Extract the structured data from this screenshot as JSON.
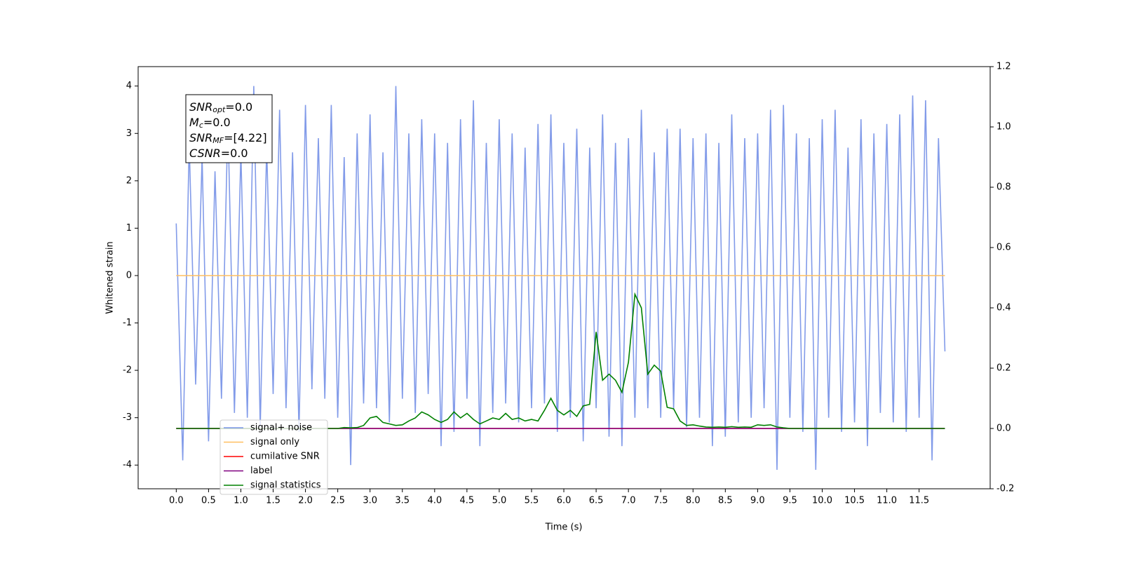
{
  "chart_data": {
    "type": "line",
    "xlabel": "Time (s)",
    "ylabel": "Whitened strain",
    "xlim": [
      -0.59,
      12.6
    ],
    "ylim": [
      -4.5,
      4.41
    ],
    "y2lim": [
      -0.2,
      1.2
    ],
    "xticks": [
      {
        "value": 0,
        "label": "0.0"
      },
      0.5,
      {
        "value": 1,
        "label": "1.0"
      },
      1.5,
      {
        "value": 2,
        "label": "2.0"
      },
      2.5,
      {
        "value": 3,
        "label": "3.0"
      },
      3.5,
      {
        "value": 4,
        "label": "4.0"
      },
      4.5,
      {
        "value": 5,
        "label": "5.0"
      },
      5.5,
      {
        "value": 6,
        "label": "6.0"
      },
      6.5,
      {
        "value": 7,
        "label": "7.0"
      },
      7.5,
      {
        "value": 8,
        "label": "8.0"
      },
      8.5,
      {
        "value": 9,
        "label": "9.0"
      },
      9.5,
      {
        "value": 10,
        "label": "10.0"
      },
      10.5,
      {
        "value": 11,
        "label": "11.0"
      },
      11.5
    ],
    "yticks": [
      -4,
      -3,
      -2,
      -1,
      0,
      1,
      2,
      3,
      4
    ],
    "y2ticks": [
      -0.2,
      {
        "value": 0,
        "label": "0.0"
      },
      0.2,
      0.4,
      0.6,
      0.8,
      {
        "value": 1,
        "label": "1.0"
      },
      1.2
    ],
    "legend": "lower left",
    "annotation": [
      {
        "main": "SNR",
        "sub": "opt",
        "rest": "=0.0"
      },
      {
        "main": "M",
        "sub": "c",
        "rest": "=0.0"
      },
      {
        "main": "SNR",
        "sub": "MF",
        "rest": "=[4.22]"
      },
      {
        "main": "CSNR",
        "sub": "",
        "rest": "=0.0"
      }
    ],
    "x": [
      0.0,
      0.1,
      0.2,
      0.3,
      0.4,
      0.5,
      0.6,
      0.7,
      0.8,
      0.9,
      1.0,
      1.1,
      1.2,
      1.3,
      1.4,
      1.5,
      1.6,
      1.7,
      1.8,
      1.9,
      2.0,
      2.1,
      2.2,
      2.3,
      2.4,
      2.5,
      2.6,
      2.7,
      2.8,
      2.9,
      3.0,
      3.1,
      3.2,
      3.3,
      3.4,
      3.5,
      3.6,
      3.7,
      3.8,
      3.9,
      4.0,
      4.1,
      4.2,
      4.3,
      4.4,
      4.5,
      4.6,
      4.7,
      4.8,
      4.9,
      5.0,
      5.1,
      5.2,
      5.3,
      5.4,
      5.5,
      5.6,
      5.7,
      5.8,
      5.9,
      6.0,
      6.1,
      6.2,
      6.3,
      6.4,
      6.5,
      6.6,
      6.7,
      6.8,
      6.9,
      7.0,
      7.1,
      7.2,
      7.3,
      7.4,
      7.5,
      7.6,
      7.7,
      7.8,
      7.9,
      8.0,
      8.1,
      8.2,
      8.3,
      8.4,
      8.5,
      8.6,
      8.7,
      8.8,
      8.9,
      9.0,
      9.1,
      9.2,
      9.3,
      9.4,
      9.5,
      9.6,
      9.7,
      9.8,
      9.9,
      10.0,
      10.1,
      10.2,
      10.3,
      10.4,
      10.5,
      10.6,
      10.7,
      10.8,
      10.9,
      11.0,
      11.1,
      11.2,
      11.3,
      11.4,
      11.5,
      11.6,
      11.7,
      11.8,
      11.9
    ],
    "series": [
      {
        "name": "signal+ noise",
        "color": "#7b96e8",
        "axis": "y",
        "values": [
          1.1,
          -3.9,
          2.8,
          -2.3,
          2.5,
          -3.5,
          2.2,
          -2.6,
          3.3,
          -2.9,
          2.6,
          -3.0,
          4.0,
          -3.2,
          2.7,
          -2.5,
          3.5,
          -2.8,
          2.6,
          -3.3,
          3.6,
          -2.4,
          2.9,
          -2.6,
          3.6,
          -3.0,
          2.5,
          -4.0,
          3.0,
          -2.7,
          3.4,
          -2.8,
          2.6,
          -3.1,
          4.0,
          -2.6,
          3.0,
          -2.9,
          3.3,
          -2.5,
          3.0,
          -3.6,
          2.8,
          -3.3,
          3.3,
          -2.6,
          3.7,
          -3.6,
          2.8,
          -2.9,
          3.3,
          -2.7,
          3.0,
          -3.1,
          2.7,
          -2.8,
          3.2,
          -2.7,
          3.4,
          -3.3,
          2.8,
          -3.0,
          3.1,
          -3.5,
          2.7,
          -2.8,
          3.4,
          -3.4,
          2.8,
          -3.6,
          2.9,
          -3.0,
          3.5,
          -2.8,
          2.6,
          -3.0,
          3.1,
          -2.8,
          3.1,
          -3.2,
          2.9,
          -3.0,
          3.0,
          -3.6,
          2.8,
          -3.4,
          3.4,
          -3.1,
          2.9,
          -3.0,
          3.0,
          -2.8,
          3.5,
          -4.1,
          3.6,
          -3.0,
          3.0,
          -3.3,
          2.9,
          -4.1,
          3.3,
          -3.0,
          3.5,
          -3.3,
          2.7,
          -3.1,
          3.3,
          -3.6,
          3.0,
          -2.9,
          3.2,
          -3.1,
          3.4,
          -3.3,
          3.8,
          -3.0,
          3.7,
          -3.9,
          2.9,
          -1.6
        ]
      },
      {
        "name": "signal only",
        "color": "#ffbf60",
        "axis": "y",
        "values": [
          0,
          0,
          0,
          0,
          0,
          0,
          0,
          0,
          0,
          0,
          0,
          0,
          0,
          0,
          0,
          0,
          0,
          0,
          0,
          0,
          0,
          0,
          0,
          0,
          0,
          0,
          0,
          0,
          0,
          0,
          0,
          0,
          0,
          0,
          0,
          0,
          0,
          0,
          0,
          0,
          0,
          0,
          0,
          0,
          0,
          0,
          0,
          0,
          0,
          0,
          0,
          0,
          0,
          0,
          0,
          0,
          0,
          0,
          0,
          0,
          0,
          0,
          0,
          0,
          0,
          0,
          0,
          0,
          0,
          0,
          0,
          0,
          0,
          0,
          0,
          0,
          0,
          0,
          0,
          0,
          0,
          0,
          0,
          0,
          0,
          0,
          0,
          0,
          0,
          0,
          0,
          0,
          0,
          0,
          0,
          0,
          0,
          0,
          0,
          0,
          0,
          0,
          0,
          0,
          0,
          0,
          0,
          0,
          0,
          0,
          0,
          0,
          0,
          0,
          0,
          0,
          0,
          0,
          0,
          0
        ]
      },
      {
        "name": "cumilative SNR",
        "color": "red",
        "axis": "y2",
        "values": [
          0,
          0,
          0,
          0,
          0,
          0,
          0,
          0,
          0,
          0,
          0,
          0,
          0,
          0,
          0,
          0,
          0,
          0,
          0,
          0,
          0,
          0,
          0,
          0,
          0,
          0,
          0,
          0,
          0,
          0,
          0,
          0,
          0,
          0,
          0,
          0,
          0,
          0,
          0,
          0,
          0,
          0,
          0,
          0,
          0,
          0,
          0,
          0,
          0,
          0,
          0,
          0,
          0,
          0,
          0,
          0,
          0,
          0,
          0,
          0,
          0,
          0,
          0,
          0,
          0,
          0,
          0,
          0,
          0,
          0,
          0,
          0,
          0,
          0,
          0,
          0,
          0,
          0,
          0,
          0,
          0,
          0,
          0,
          0,
          0,
          0,
          0,
          0,
          0,
          0,
          0,
          0,
          0,
          0,
          0,
          0,
          0,
          0,
          0,
          0,
          0,
          0,
          0,
          0,
          0,
          0,
          0,
          0,
          0,
          0,
          0,
          0,
          0,
          0,
          0,
          0,
          0,
          0,
          0,
          0
        ]
      },
      {
        "name": "label",
        "color": "purple",
        "axis": "y2",
        "values": [
          0,
          0,
          0,
          0,
          0,
          0,
          0,
          0,
          0,
          0,
          0,
          0,
          0,
          0,
          0,
          0,
          0,
          0,
          0,
          0,
          0,
          0,
          0,
          0,
          0,
          0,
          0,
          0,
          0,
          0,
          0,
          0,
          0,
          0,
          0,
          0,
          0,
          0,
          0,
          0,
          0,
          0,
          0,
          0,
          0,
          0,
          0,
          0,
          0,
          0,
          0,
          0,
          0,
          0,
          0,
          0,
          0,
          0,
          0,
          0,
          0,
          0,
          0,
          0,
          0,
          0,
          0,
          0,
          0,
          0,
          0,
          0,
          0,
          0,
          0,
          0,
          0,
          0,
          0,
          0,
          0,
          0,
          0,
          0,
          0,
          0,
          0,
          0,
          0,
          0,
          0,
          0,
          0,
          0,
          0,
          0,
          0,
          0,
          0,
          0,
          0,
          0,
          0,
          0,
          0,
          0,
          0,
          0,
          0,
          0,
          0,
          0,
          0,
          0,
          0,
          0,
          0,
          0,
          0,
          0
        ]
      },
      {
        "name": "signal statistics",
        "color": "green",
        "axis": "y2",
        "values": [
          0,
          0,
          0,
          0,
          0,
          0,
          0,
          0,
          0,
          0,
          0,
          0,
          0,
          0,
          0,
          0,
          0,
          0,
          0,
          0,
          0,
          0,
          0,
          0,
          0,
          0,
          0.003,
          0.002,
          0.003,
          0.01,
          0.035,
          0.04,
          0.02,
          0.015,
          0.01,
          0.012,
          0.025,
          0.035,
          0.055,
          0.045,
          0.03,
          0.02,
          0.03,
          0.055,
          0.035,
          0.05,
          0.03,
          0.015,
          0.025,
          0.035,
          0.03,
          0.05,
          0.03,
          0.035,
          0.025,
          0.03,
          0.025,
          0.06,
          0.1,
          0.06,
          0.045,
          0.06,
          0.04,
          0.075,
          0.08,
          0.32,
          0.16,
          0.18,
          0.16,
          0.12,
          0.22,
          0.445,
          0.4,
          0.18,
          0.21,
          0.19,
          0.07,
          0.065,
          0.025,
          0.01,
          0.012,
          0.008,
          0.005,
          0.004,
          0.005,
          0.004,
          0.006,
          0.004,
          0.005,
          0.004,
          0.012,
          0.01,
          0.012,
          0.005,
          0.002,
          0,
          0,
          0,
          0,
          0,
          0,
          0,
          0,
          0,
          0,
          0,
          0,
          0,
          0,
          0,
          0,
          0,
          0,
          0,
          0,
          0,
          0,
          0,
          0,
          0
        ]
      }
    ]
  }
}
